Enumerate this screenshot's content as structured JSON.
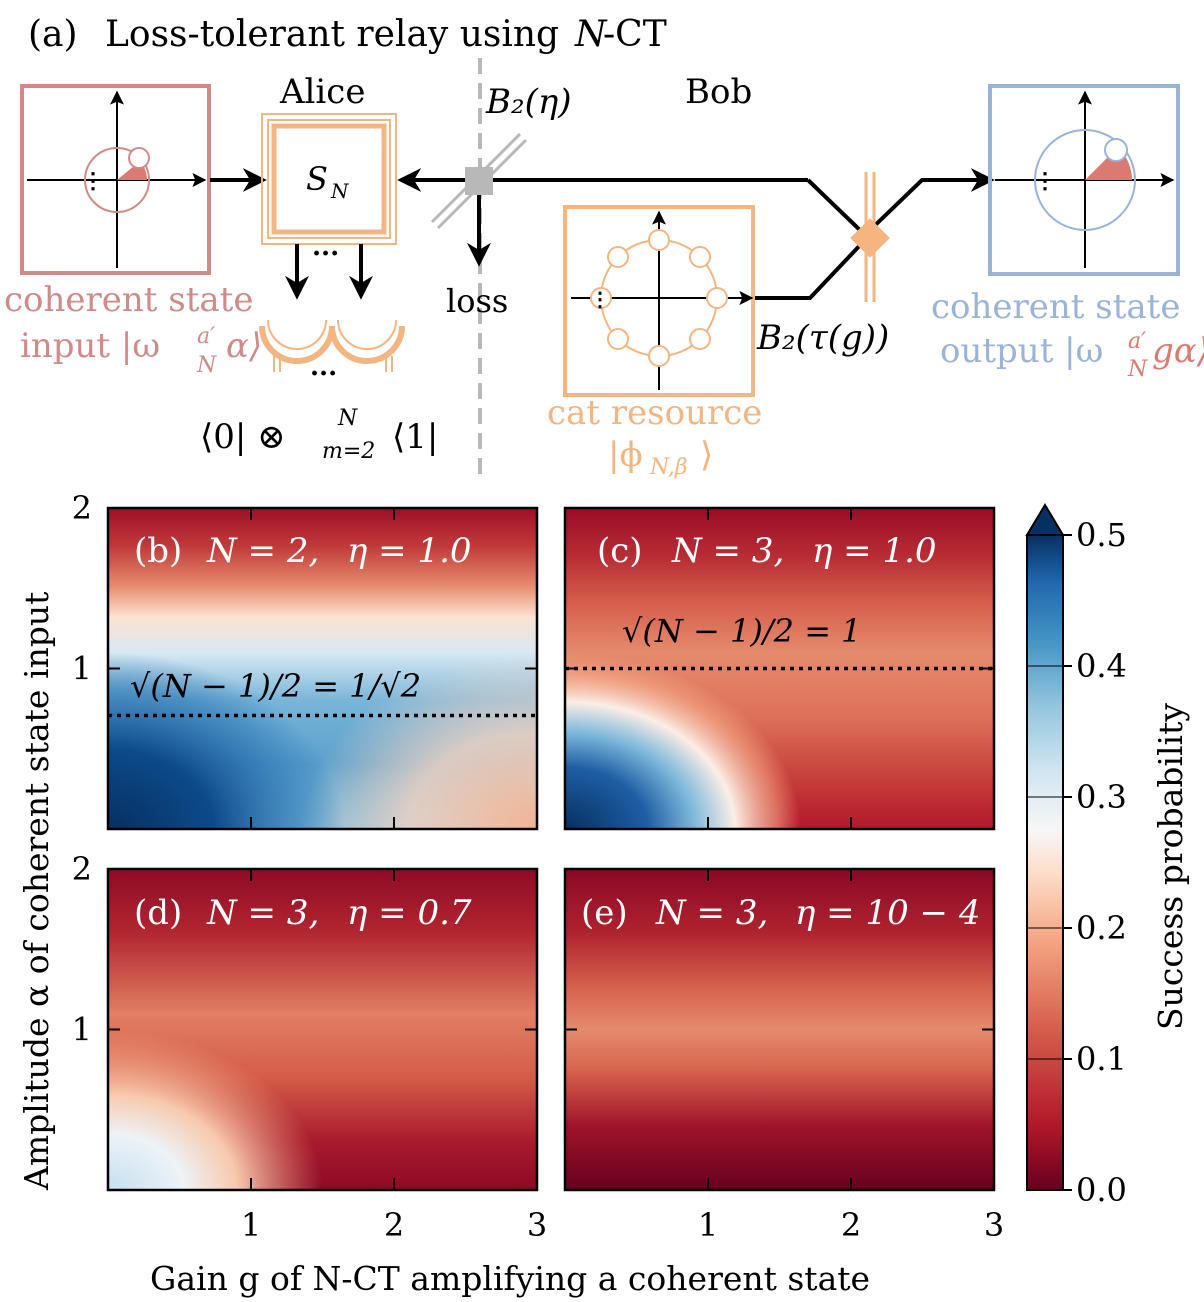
{
  "schematic": {
    "title_prefix": "(a)",
    "title_text": "Loss-tolerant relay using",
    "title_n": "N",
    "title_suffix": "-CT",
    "alice_label": "Alice",
    "bob_label": "Bob",
    "beamsplitter_label": "B₂(η)",
    "alice_op": "S",
    "alice_op_sub": "N",
    "loss_label": "loss",
    "bob_bs_label": "B₂(τ(g))",
    "input_line1": "coherent state",
    "input_line2": "input |ω",
    "input_line2_sup": "a′",
    "input_line2_sub": "N",
    "input_line2_end": "α⟩",
    "output_line1": "coherent state",
    "output_line2": "output |ω",
    "output_line2_sup": "a′",
    "output_line2_sub": "N",
    "output_line2_end": "gα⟩",
    "cat_line1": "cat resource",
    "cat_line2": "|ϕ",
    "cat_line2_sub": "N,β",
    "cat_line2_end": "⟩",
    "projector_a": "⟨0| ⊗",
    "projector_sup": "N",
    "projector_sub": "m=2",
    "projector_b": "⟨1|",
    "colors": {
      "input": "#d08a8a",
      "output": "#9ab3d8",
      "cat": "#f5b580",
      "shade": "#dc7a72",
      "gray": "#b0b0b0"
    }
  },
  "chart_data": {
    "type": "heatmap",
    "xlabel": "Gain g of N-CT amplifying a coherent state",
    "ylabel": "Amplitude α of coherent state input",
    "colorbar_label": "Success probability",
    "colorbar_ticks": [
      "0.0",
      "0.1",
      "0.2",
      "0.3",
      "0.4",
      "0.5"
    ],
    "colorbar_range": [
      0.0,
      0.5
    ],
    "xlim": [
      0,
      3
    ],
    "ylim": [
      0,
      2
    ],
    "xticks": [
      "1",
      "2",
      "3"
    ],
    "yticks": [
      "1",
      "2"
    ],
    "panels": [
      {
        "label": "(b)",
        "N": "N = 2,",
        "eta": "η = 1.0",
        "threshold": 0.7071,
        "threshold_label": "√(N − 1)/2 = 1/√2"
      },
      {
        "label": "(c)",
        "N": "N = 3,",
        "eta": "η = 1.0",
        "threshold": 1.0,
        "threshold_label": "√(N − 1)/2 = 1"
      },
      {
        "label": "(d)",
        "N": "N = 3,",
        "eta": "η = 0.7",
        "threshold": null
      },
      {
        "label": "(e)",
        "N": "N = 3,",
        "eta": "η = 10 − 4",
        "threshold": null
      }
    ]
  }
}
